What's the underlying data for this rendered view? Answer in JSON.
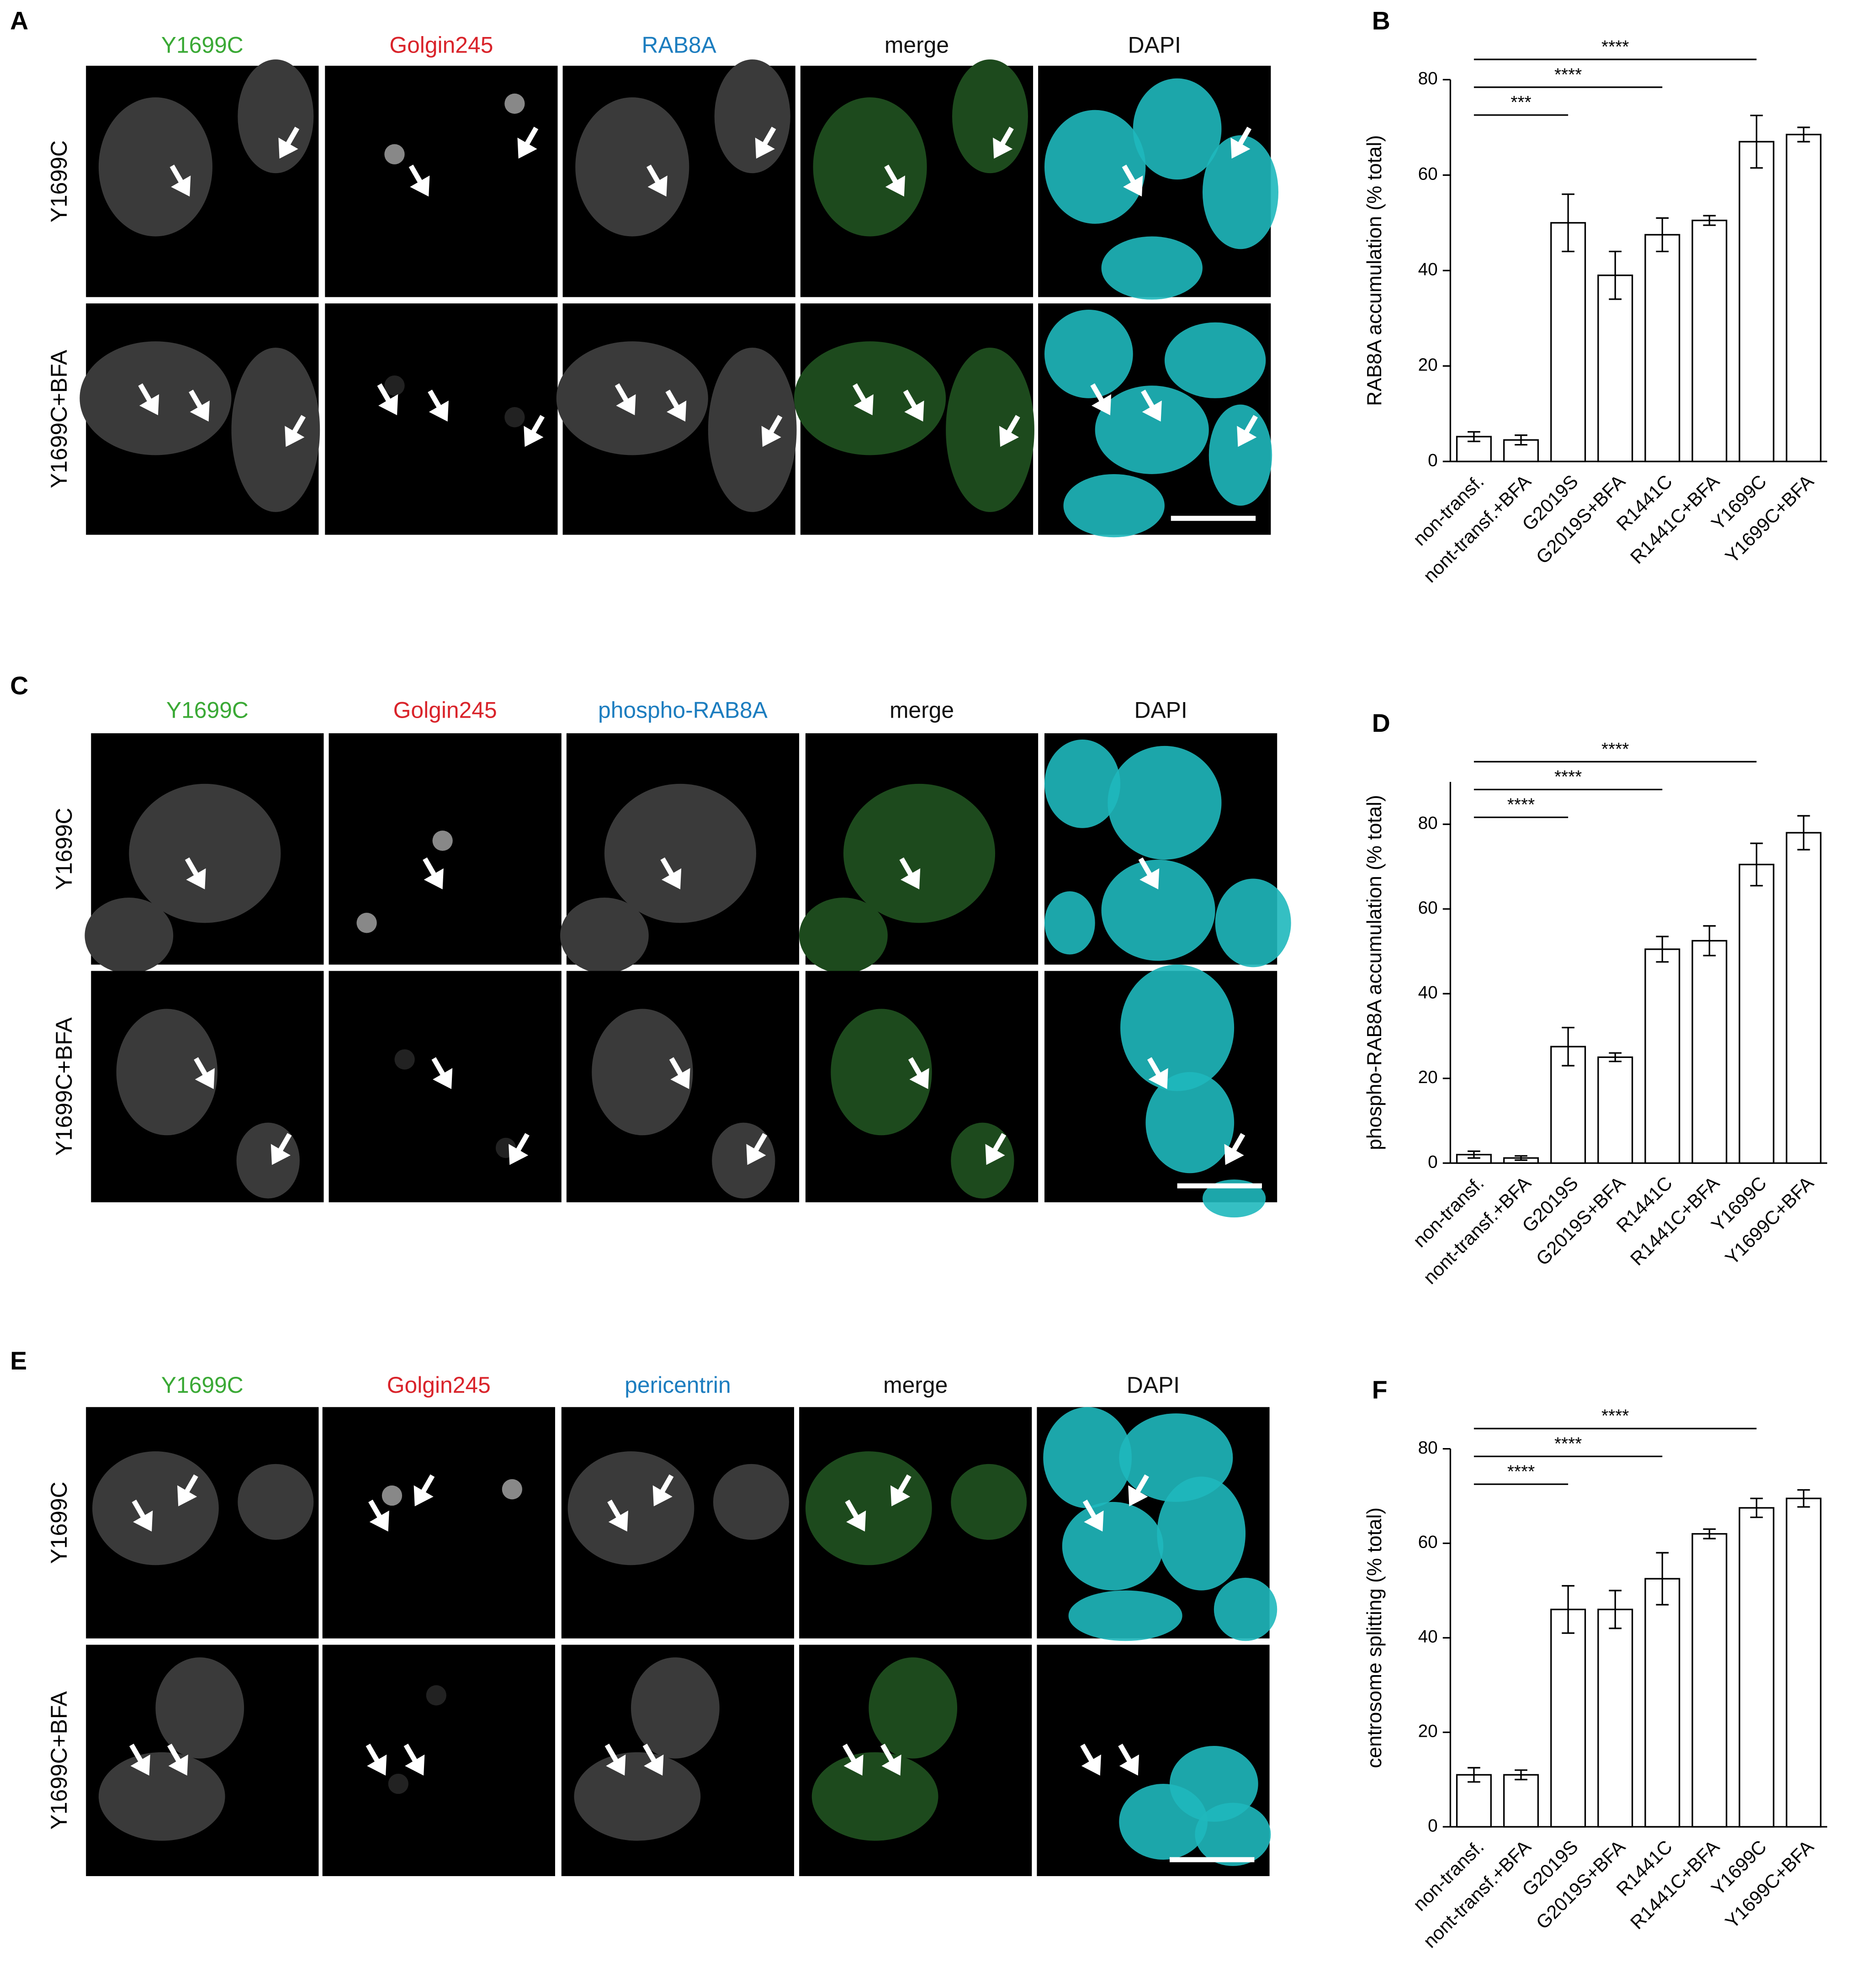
{
  "panels": [
    {
      "letter": "A",
      "columns": [
        "Y1699C",
        "Golgin245",
        "RAB8A",
        "merge",
        "DAPI"
      ],
      "rows": [
        "Y1699C",
        "Y1699C+BFA"
      ]
    },
    {
      "letter": "C",
      "columns": [
        "Y1699C",
        "Golgin245",
        "phospho-RAB8A",
        "merge",
        "DAPI"
      ],
      "rows": [
        "Y1699C",
        "Y1699C+BFA"
      ]
    },
    {
      "letter": "E",
      "columns": [
        "Y1699C",
        "Golgin245",
        "pericentrin",
        "merge",
        "DAPI"
      ],
      "rows": [
        "Y1699C",
        "Y1699C+BFA"
      ]
    }
  ],
  "column_colors": [
    "#3aa935",
    "#d9232a",
    "#1c7dbf",
    "#111111",
    "#111111"
  ],
  "chart_data": [
    {
      "type": "bar",
      "letter": "B",
      "ylabel": "RAB8A accumulation (% total)",
      "categories": [
        "non-transf.",
        "nont-transf.+BFA",
        "G2019S",
        "G2019S+BFA",
        "R1441C",
        "R1441C+BFA",
        "Y1699C",
        "Y1699C+BFA"
      ],
      "values": [
        5.2,
        4.5,
        50,
        39,
        47.5,
        50.5,
        67,
        68.5
      ],
      "errors": [
        1,
        1,
        6,
        5,
        3.5,
        1,
        5.5,
        1.5
      ],
      "ylim": [
        0,
        80
      ],
      "yticks": [
        0,
        20,
        40,
        60,
        80
      ],
      "color": "#ffffff",
      "significance": [
        {
          "label": "***",
          "groups": [
            "non-transf.",
            "G2019S"
          ]
        },
        {
          "label": "****",
          "groups": [
            "non-transf.",
            "R1441C"
          ]
        },
        {
          "label": "****",
          "groups": [
            "non-transf.",
            "Y1699C"
          ]
        }
      ]
    },
    {
      "type": "bar",
      "letter": "D",
      "ylabel": "phospho-RAB8A accumulation (% total)",
      "categories": [
        "non-transf.",
        "nont-transf.+BFA",
        "G2019S",
        "G2019S+BFA",
        "R1441C",
        "R1441C+BFA",
        "Y1699C",
        "Y1699C+BFA"
      ],
      "values": [
        2,
        1.2,
        27.5,
        25,
        50.5,
        52.5,
        70.5,
        78
      ],
      "errors": [
        0.8,
        0.5,
        4.5,
        1,
        3,
        3.5,
        5,
        4
      ],
      "ylim": [
        0,
        90
      ],
      "yticks": [
        0,
        20,
        40,
        60,
        80
      ],
      "color": "#ffffff",
      "significance": [
        {
          "label": "****",
          "groups": [
            "non-transf.",
            "G2019S"
          ]
        },
        {
          "label": "****",
          "groups": [
            "non-transf.",
            "R1441C"
          ]
        },
        {
          "label": "****",
          "groups": [
            "non-transf.",
            "Y1699C"
          ]
        }
      ]
    },
    {
      "type": "bar",
      "letter": "F",
      "ylabel": "centrosome splitting (% total)",
      "categories": [
        "non-transf.",
        "nont-transf.+BFA",
        "G2019S",
        "G2019S+BFA",
        "R1441C",
        "R1441C+BFA",
        "Y1699C",
        "Y1699C+BFA"
      ],
      "values": [
        11,
        11,
        46,
        46,
        52.5,
        62,
        67.5,
        69.5
      ],
      "errors": [
        1.5,
        1,
        5,
        4,
        5.5,
        1,
        2,
        1.8
      ],
      "ylim": [
        0,
        80
      ],
      "yticks": [
        0,
        20,
        40,
        60,
        80
      ],
      "color": "#ffffff",
      "significance": [
        {
          "label": "****",
          "groups": [
            "non-transf.",
            "G2019S"
          ]
        },
        {
          "label": "****",
          "groups": [
            "non-transf.",
            "R1441C"
          ]
        },
        {
          "label": "****",
          "groups": [
            "non-transf.",
            "Y1699C"
          ]
        }
      ]
    }
  ]
}
